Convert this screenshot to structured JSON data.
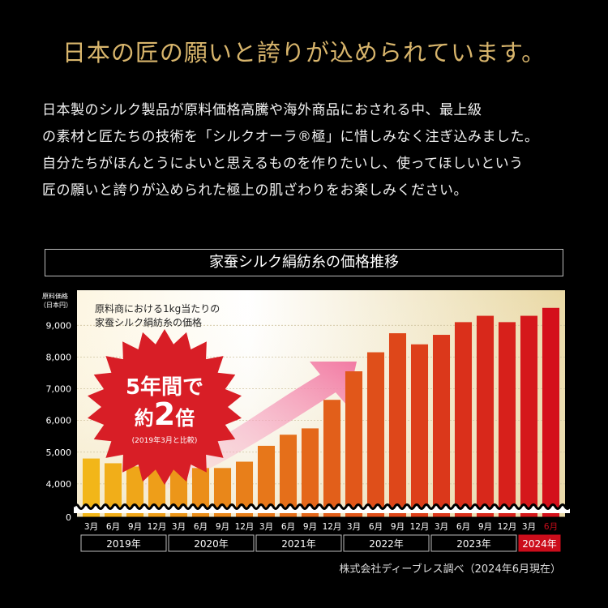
{
  "headline": "日本の匠の願いと誇りが込められています。",
  "body_lines": [
    "日本製のシルク製品が原料価格高騰や海外商品におされる中、最上級",
    "の素材と匠たちの技術を「シルクオーラ®極」に惜しみなく注ぎ込みました。",
    "自分たちがほんとうによいと思えるものを作りたいし、使ってほしいという",
    "匠の願いと誇りが込められた極上の肌ざわりをお楽しみください。"
  ],
  "chart_title": "家蚕シルク絹紡糸の価格推移",
  "source_note": "株式会社ディーブレス調べ（2024年6月現在）",
  "colors": {
    "headline": "#d8b56c",
    "bar_start": "#f2b619",
    "bar_end": "#d4101b",
    "highlight_year": "#cc0d1b",
    "badge_red": "#d81e26",
    "arrow_pink": "#f37fa6"
  },
  "chart_data": {
    "type": "bar",
    "ylabel_lines": [
      "原料価格",
      "（日本円）"
    ],
    "yticks": [
      "9,000",
      "8,000",
      "7,000",
      "6,000",
      "5,000",
      "4,000",
      "0"
    ],
    "ytick_values": [
      9000,
      8000,
      7000,
      6000,
      5000,
      4000,
      3000
    ],
    "ylim": [
      3000,
      9800
    ],
    "axis_break": true,
    "grid": true,
    "categories": [
      "3月",
      "6月",
      "9月",
      "12月",
      "3月",
      "6月",
      "9月",
      "12月",
      "3月",
      "6月",
      "9月",
      "12月",
      "3月",
      "6月",
      "9月",
      "12月",
      "3月",
      "6月",
      "9月",
      "12月",
      "3月",
      "6月"
    ],
    "values": [
      4800,
      4650,
      4550,
      4500,
      4500,
      4500,
      4500,
      4700,
      5200,
      5550,
      5750,
      6650,
      7550,
      8150,
      8750,
      8400,
      8700,
      9100,
      9300,
      9100,
      9300,
      9550
    ],
    "highlight_last_category": true,
    "years": [
      {
        "label": "2019年",
        "span": 4
      },
      {
        "label": "2020年",
        "span": 4
      },
      {
        "label": "2021年",
        "span": 4
      },
      {
        "label": "2022年",
        "span": 4
      },
      {
        "label": "2023年",
        "span": 4
      },
      {
        "label": "2024年",
        "span": 2,
        "highlight": true
      }
    ],
    "annotation_lines": [
      "原料商における1kg当たりの",
      "家蚕シルク絹紡糸の価格"
    ],
    "badge": {
      "line1": "5年間で",
      "line2_prefix": "約",
      "line2_number": "2",
      "line2_suffix": "倍",
      "note": "(2019年3月と比較)"
    }
  }
}
